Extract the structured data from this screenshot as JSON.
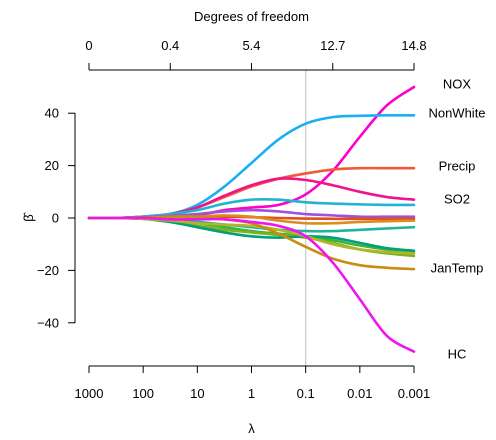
{
  "chart_data": {
    "type": "line",
    "title": "",
    "xlabel": "λ",
    "x2label": "Degrees of freedom",
    "ylabel": "β̂",
    "x_scale": "log-reversed",
    "xlim": [
      1000,
      0.001
    ],
    "ylim": [
      -50,
      50
    ],
    "yticks": [
      -40,
      -20,
      0,
      20,
      40
    ],
    "xtick_labels": [
      "1000",
      "100",
      "10",
      "1",
      "0.1",
      "0.01",
      "0.001"
    ],
    "xtick_values": [
      1000,
      100,
      10,
      1,
      0.1,
      0.01,
      0.001
    ],
    "top_ticks": [
      {
        "lambda": 1000,
        "label": "0"
      },
      {
        "lambda": 31.6,
        "label": "0.4"
      },
      {
        "lambda": 1,
        "label": "5.4"
      },
      {
        "lambda": 0.0316,
        "label": "12.7"
      },
      {
        "lambda": 0.001,
        "label": "14.8"
      }
    ],
    "reference_line": {
      "lambda": 0.1,
      "color": "#c8c8c8"
    },
    "x": [
      1000,
      316,
      100,
      31.6,
      10,
      3.16,
      1,
      0.316,
      0.1,
      0.0316,
      0.01,
      0.00316,
      0.001
    ],
    "series": [
      {
        "name": "NOX",
        "color": "#ff00c8",
        "values": [
          0,
          0,
          0,
          0.5,
          1,
          3,
          4,
          5,
          9,
          18,
          31,
          43,
          50
        ]
      },
      {
        "name": "NonWhite",
        "color": "#1ab0f0",
        "values": [
          0,
          0,
          0.5,
          1.5,
          5,
          12,
          21,
          30,
          36,
          38.5,
          39,
          39.2,
          39.2
        ]
      },
      {
        "name": "Precip",
        "color": "#f05a3c",
        "values": [
          0,
          0,
          0.5,
          1.5,
          4,
          8,
          12,
          15,
          17,
          18.5,
          19,
          19,
          19
        ]
      },
      {
        "name": "SO2",
        "color": "#f0148c",
        "values": [
          0,
          0,
          0.5,
          1.5,
          4,
          8.5,
          12.5,
          15,
          14.5,
          12.5,
          10,
          8,
          7
        ]
      },
      {
        "name": "",
        "color": "#1eb4d2",
        "values": [
          0,
          0,
          0.5,
          1.5,
          3,
          5.5,
          7,
          7,
          6,
          5.5,
          5.2,
          5,
          5
        ]
      },
      {
        "name": "",
        "color": "#a050dc",
        "values": [
          0,
          0,
          0.2,
          0.8,
          1.5,
          2.5,
          3,
          2.5,
          1.5,
          1,
          0.5,
          0.5,
          0.5
        ]
      },
      {
        "name": "",
        "color": "#e0501e",
        "values": [
          0,
          0,
          0.2,
          0.5,
          0.5,
          0.5,
          0.3,
          0,
          -0.2,
          -0.3,
          -0.3,
          -0.3,
          -0.3
        ]
      },
      {
        "name": "",
        "color": "#dc8c1e",
        "values": [
          0,
          0,
          0,
          0.3,
          0.5,
          1,
          0.5,
          -1,
          -2,
          -2,
          -1.5,
          -1.2,
          -1
        ]
      },
      {
        "name": "",
        "color": "#20b4a0",
        "values": [
          0,
          0,
          -0.2,
          -0.8,
          -1.5,
          -2.5,
          -3.5,
          -4.5,
          -5,
          -5,
          -4.5,
          -4,
          -3.5
        ]
      },
      {
        "name": "",
        "color": "#3cb43c",
        "values": [
          0,
          0,
          -0.2,
          -1,
          -2,
          -3.5,
          -5,
          -6,
          -7,
          -8.5,
          -10.5,
          -12,
          -13
        ]
      },
      {
        "name": "",
        "color": "#78b41e",
        "values": [
          0,
          0,
          -0.3,
          -1.5,
          -3,
          -4.5,
          -5.5,
          -6.5,
          -7.5,
          -9.5,
          -12,
          -13.5,
          -14.5
        ]
      },
      {
        "name": "",
        "color": "#00a078",
        "values": [
          0,
          0,
          -0.3,
          -1.5,
          -3.5,
          -5.5,
          -7,
          -7.5,
          -7,
          -7.5,
          -9.5,
          -11.5,
          -12.5
        ]
      },
      {
        "name": "",
        "color": "#b4b428",
        "values": [
          0,
          0,
          -0.3,
          -1,
          -2,
          -2.5,
          -3,
          -4.5,
          -7,
          -10,
          -12,
          -13,
          -13.5
        ]
      },
      {
        "name": "JanTemp",
        "color": "#c88c14",
        "values": [
          0,
          0,
          0,
          0.5,
          0.5,
          -0.5,
          -2,
          -6,
          -11,
          -15.5,
          -18,
          -19,
          -19.5
        ]
      },
      {
        "name": "HC",
        "color": "#f014f0",
        "values": [
          0,
          0,
          0,
          -0.5,
          -0.5,
          -0.5,
          -1.5,
          -3,
          -7,
          -17,
          -31,
          -45,
          -51
        ]
      }
    ],
    "legend": "none",
    "grid": false
  }
}
